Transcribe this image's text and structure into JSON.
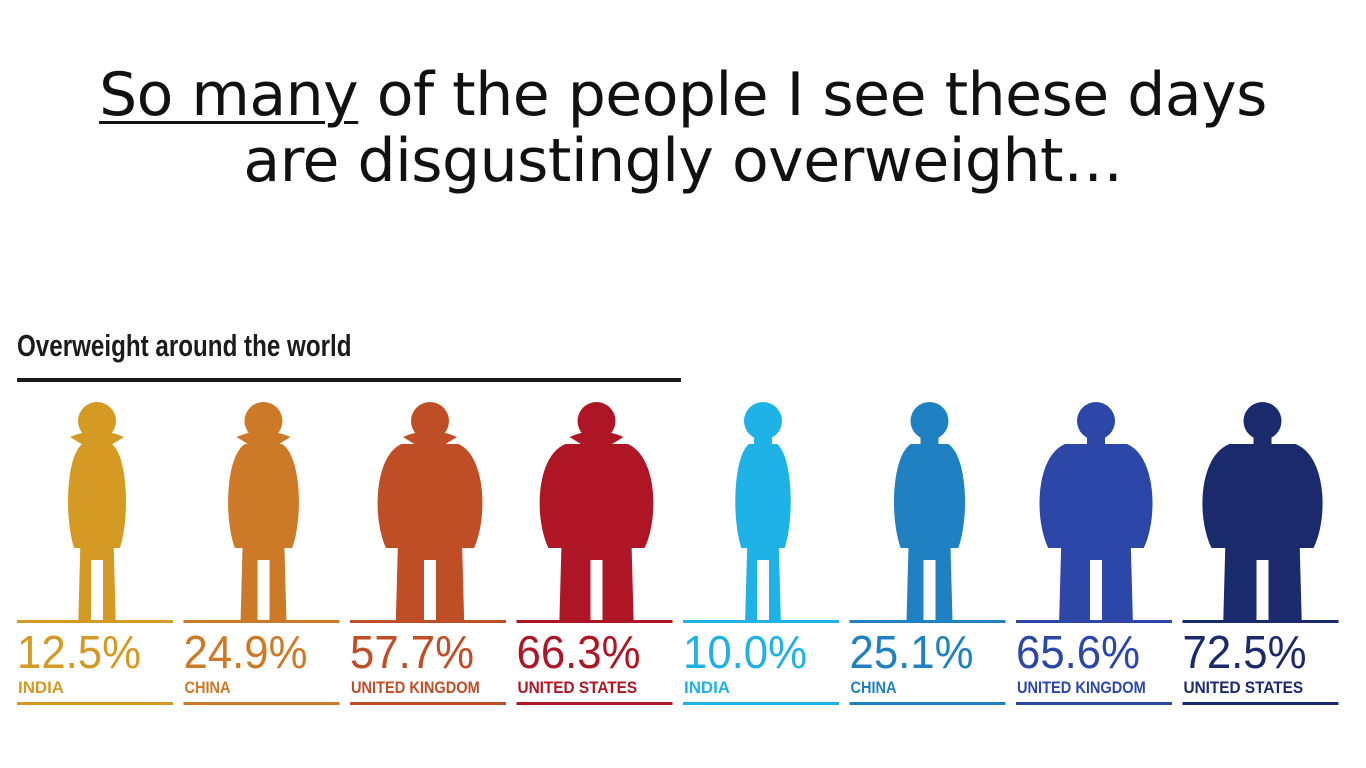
{
  "slide": {
    "title_underlined": "So many",
    "title_line1_rest": " of the people I see these days",
    "title_line2": "are disgustingly overweight…"
  },
  "chart_data": {
    "type": "bar",
    "title": "Overweight around the world",
    "categories": [
      "INDIA",
      "CHINA",
      "UNITED KINGDOM",
      "UNITED STATES",
      "INDIA",
      "CHINA",
      "UNITED KINGDOM",
      "UNITED STATES"
    ],
    "values": [
      12.5,
      24.9,
      57.7,
      66.3,
      10.0,
      25.1,
      65.6,
      72.5
    ],
    "labels": [
      "12.5%",
      "24.9%",
      "57.7%",
      "66.3%",
      "10.0%",
      "25.1%",
      "65.6%",
      "72.5%"
    ],
    "unit": "%",
    "figure_type": [
      "female",
      "female",
      "female",
      "female",
      "male",
      "male",
      "male",
      "male"
    ],
    "colors": [
      "#D59A24",
      "#CC7A27",
      "#BF4D25",
      "#AE1626",
      "#1FB2E6",
      "#1F80C2",
      "#2D47A8",
      "#1A2A6C"
    ],
    "grid": false,
    "legend": "none"
  }
}
